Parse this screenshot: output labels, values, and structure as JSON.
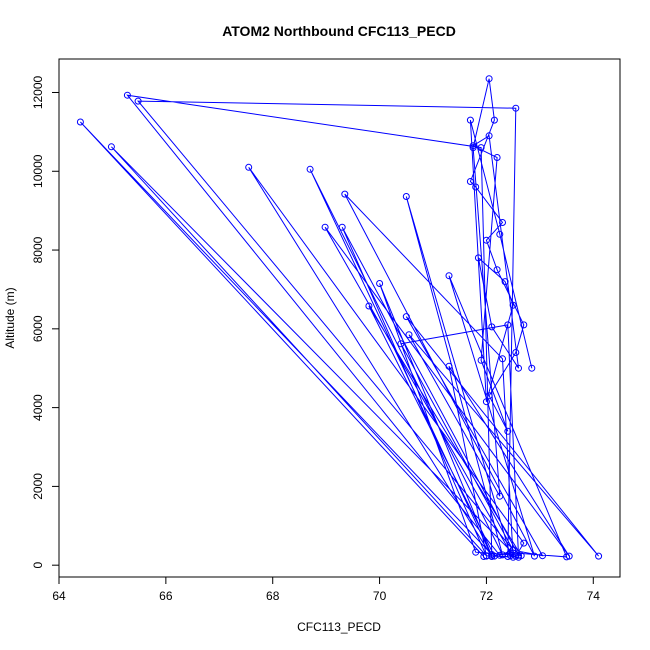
{
  "chart_data": {
    "type": "line",
    "title": "ATOM2 Northbound CFC113_PECD",
    "xlabel": "CFC113_PECD",
    "ylabel": "Altitude (m)",
    "xlim": [
      64,
      74.5
    ],
    "ylim": [
      -300,
      12850
    ],
    "xticks": [
      64,
      66,
      68,
      70,
      72,
      74
    ],
    "yticks": [
      0,
      2000,
      4000,
      6000,
      8000,
      10000,
      12000
    ],
    "grid": false,
    "legend": "none",
    "colors": {
      "series": "#0000ff"
    },
    "series": [
      {
        "x": [
          71.95,
          64.4,
          72.1,
          71.9,
          65.28,
          72.25,
          72.5,
          65.48,
          72.55,
          72.4,
          72.0,
          64.98,
          72.55,
          72.7,
          67.55,
          72.1,
          68.7,
          72.3,
          70.5,
          72.45,
          72.6,
          72.15,
          69.8,
          72.65,
          71.8,
          70.0,
          72.1,
          72.45,
          73.5,
          71.3,
          72.9,
          69.35,
          72.3,
          72.5,
          68.98,
          73.55,
          71.3,
          72.0,
          69.3,
          72.6,
          72.4,
          70.4,
          72.5,
          73.05,
          70.5,
          74.1,
          70.55,
          72.25,
          71.75,
          72.05,
          72.15,
          71.7,
          71.8,
          72.3,
          72.0,
          72.2,
          72.7,
          72.55,
          72.05,
          72.4,
          71.9,
          72.2,
          71.75,
          72.05,
          72.6,
          72.1,
          71.85,
          72.35,
          72.5,
          72.0,
          71.7,
          72.25,
          72.85
        ],
        "y": [
          220,
          11250,
          270,
          10600,
          11930,
          250,
          390,
          11780,
          11600,
          220,
          240,
          10620,
          230,
          560,
          10100,
          220,
          10050,
          260,
          9360,
          240,
          200,
          230,
          6580,
          240,
          330,
          7150,
          230,
          320,
          210,
          7350,
          230,
          9420,
          5240,
          200,
          8580,
          230,
          5050,
          230,
          8580,
          250,
          6100,
          5620,
          380,
          240,
          6310,
          230,
          5850,
          1750,
          10600,
          12350,
          11300,
          9740,
          9600,
          8700,
          8250,
          7500,
          6100,
          5400,
          4300,
          3400,
          5200,
          10350,
          10650,
          10900,
          5000,
          6050,
          7800,
          7200,
          6600,
          4150,
          11300,
          8400,
          5000
        ]
      }
    ]
  }
}
